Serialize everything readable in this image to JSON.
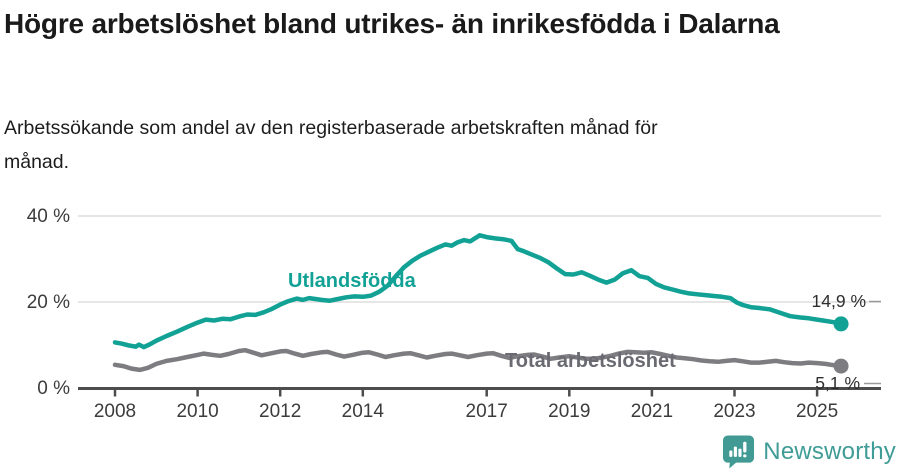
{
  "header": {
    "title": "Högre arbetslöshet bland utrikes- än inrikesfödda i Dalarna",
    "subtitle": "Arbetssökande som andel av den registerbaserade arbetskraften månad för månad."
  },
  "chart_data": {
    "type": "line",
    "title": "Högre arbetslöshet bland utrikes- än inrikesfödda i Dalarna",
    "subtitle": "Arbetssökande som andel av den registerbaserade arbetskraften månad för månad.",
    "unit": "%",
    "grid": "horizontal-only",
    "legend_position": "inline-labels",
    "x_axis": {
      "min": 2008,
      "max": 2025.7,
      "ticks": [
        2008,
        2010,
        2012,
        2014,
        2017,
        2019,
        2021,
        2023,
        2025
      ]
    },
    "y_axis": {
      "min": 0,
      "max": 40,
      "ticks": [
        {
          "value": 0,
          "label": "0 %"
        },
        {
          "value": 20,
          "label": "20 %"
        },
        {
          "value": 40,
          "label": "40 %"
        }
      ]
    },
    "series": [
      {
        "name": "Utlandsfödda",
        "color": "#12a195",
        "end_value": 14.9,
        "end_label": "14,9 %",
        "points": [
          [
            2008.0,
            10.6
          ],
          [
            2008.17,
            10.3
          ],
          [
            2008.33,
            9.9
          ],
          [
            2008.5,
            9.6
          ],
          [
            2008.58,
            10.1
          ],
          [
            2008.7,
            9.5
          ],
          [
            2008.83,
            10.1
          ],
          [
            2009.0,
            11.0
          ],
          [
            2009.25,
            12.1
          ],
          [
            2009.5,
            13.1
          ],
          [
            2009.75,
            14.2
          ],
          [
            2010.0,
            15.2
          ],
          [
            2010.2,
            15.9
          ],
          [
            2010.4,
            15.7
          ],
          [
            2010.6,
            16.1
          ],
          [
            2010.8,
            16.0
          ],
          [
            2011.0,
            16.6
          ],
          [
            2011.2,
            17.1
          ],
          [
            2011.4,
            17.0
          ],
          [
            2011.6,
            17.6
          ],
          [
            2011.8,
            18.4
          ],
          [
            2012.0,
            19.4
          ],
          [
            2012.2,
            20.2
          ],
          [
            2012.4,
            20.8
          ],
          [
            2012.55,
            20.5
          ],
          [
            2012.7,
            20.9
          ],
          [
            2012.85,
            20.7
          ],
          [
            2013.0,
            20.5
          ],
          [
            2013.2,
            20.3
          ],
          [
            2013.4,
            20.7
          ],
          [
            2013.6,
            21.1
          ],
          [
            2013.8,
            21.3
          ],
          [
            2014.0,
            21.2
          ],
          [
            2014.2,
            21.5
          ],
          [
            2014.4,
            22.4
          ],
          [
            2014.6,
            23.8
          ],
          [
            2014.8,
            26.0
          ],
          [
            2015.0,
            28.1
          ],
          [
            2015.2,
            29.6
          ],
          [
            2015.4,
            30.8
          ],
          [
            2015.6,
            31.7
          ],
          [
            2015.8,
            32.6
          ],
          [
            2016.0,
            33.4
          ],
          [
            2016.15,
            33.1
          ],
          [
            2016.3,
            33.9
          ],
          [
            2016.45,
            34.4
          ],
          [
            2016.6,
            34.1
          ],
          [
            2016.83,
            35.5
          ],
          [
            2017.0,
            35.1
          ],
          [
            2017.2,
            34.8
          ],
          [
            2017.4,
            34.6
          ],
          [
            2017.6,
            34.2
          ],
          [
            2017.75,
            32.3
          ],
          [
            2017.9,
            31.8
          ],
          [
            2018.1,
            31.0
          ],
          [
            2018.3,
            30.2
          ],
          [
            2018.5,
            29.2
          ],
          [
            2018.7,
            27.8
          ],
          [
            2018.9,
            26.5
          ],
          [
            2019.1,
            26.4
          ],
          [
            2019.3,
            26.9
          ],
          [
            2019.5,
            26.1
          ],
          [
            2019.7,
            25.2
          ],
          [
            2019.9,
            24.5
          ],
          [
            2020.1,
            25.2
          ],
          [
            2020.3,
            26.7
          ],
          [
            2020.5,
            27.4
          ],
          [
            2020.7,
            26.0
          ],
          [
            2020.9,
            25.6
          ],
          [
            2021.1,
            24.2
          ],
          [
            2021.3,
            23.4
          ],
          [
            2021.5,
            22.9
          ],
          [
            2021.7,
            22.4
          ],
          [
            2021.9,
            22.0
          ],
          [
            2022.1,
            21.8
          ],
          [
            2022.3,
            21.6
          ],
          [
            2022.5,
            21.4
          ],
          [
            2022.7,
            21.2
          ],
          [
            2022.9,
            20.9
          ],
          [
            2023.05,
            19.9
          ],
          [
            2023.2,
            19.3
          ],
          [
            2023.4,
            18.8
          ],
          [
            2023.6,
            18.6
          ],
          [
            2023.85,
            18.3
          ],
          [
            2024.1,
            17.5
          ],
          [
            2024.35,
            16.7
          ],
          [
            2024.6,
            16.4
          ],
          [
            2024.8,
            16.2
          ],
          [
            2025.0,
            15.9
          ],
          [
            2025.2,
            15.6
          ],
          [
            2025.4,
            15.3
          ],
          [
            2025.58,
            14.9
          ]
        ]
      },
      {
        "name": "Total arbetslöshet",
        "color": "#7d7d81",
        "end_value": 5.1,
        "end_label": "5,1 %",
        "points": [
          [
            2008.0,
            5.4
          ],
          [
            2008.2,
            5.1
          ],
          [
            2008.4,
            4.5
          ],
          [
            2008.6,
            4.2
          ],
          [
            2008.8,
            4.7
          ],
          [
            2009.0,
            5.6
          ],
          [
            2009.25,
            6.3
          ],
          [
            2009.5,
            6.7
          ],
          [
            2009.75,
            7.2
          ],
          [
            2010.0,
            7.7
          ],
          [
            2010.15,
            8.0
          ],
          [
            2010.35,
            7.7
          ],
          [
            2010.55,
            7.5
          ],
          [
            2010.75,
            7.9
          ],
          [
            2011.0,
            8.6
          ],
          [
            2011.15,
            8.8
          ],
          [
            2011.35,
            8.2
          ],
          [
            2011.55,
            7.6
          ],
          [
            2011.75,
            8.0
          ],
          [
            2012.0,
            8.5
          ],
          [
            2012.15,
            8.6
          ],
          [
            2012.35,
            8.0
          ],
          [
            2012.55,
            7.5
          ],
          [
            2012.75,
            7.9
          ],
          [
            2013.0,
            8.3
          ],
          [
            2013.15,
            8.4
          ],
          [
            2013.35,
            7.8
          ],
          [
            2013.55,
            7.3
          ],
          [
            2013.75,
            7.7
          ],
          [
            2014.0,
            8.2
          ],
          [
            2014.15,
            8.3
          ],
          [
            2014.35,
            7.8
          ],
          [
            2014.55,
            7.2
          ],
          [
            2014.75,
            7.6
          ],
          [
            2015.0,
            8.0
          ],
          [
            2015.15,
            8.1
          ],
          [
            2015.35,
            7.6
          ],
          [
            2015.55,
            7.1
          ],
          [
            2015.75,
            7.5
          ],
          [
            2016.0,
            7.9
          ],
          [
            2016.15,
            8.0
          ],
          [
            2016.35,
            7.6
          ],
          [
            2016.55,
            7.2
          ],
          [
            2016.75,
            7.6
          ],
          [
            2017.0,
            8.0
          ],
          [
            2017.15,
            8.1
          ],
          [
            2017.35,
            7.5
          ],
          [
            2017.55,
            7.0
          ],
          [
            2017.75,
            7.4
          ],
          [
            2018.0,
            7.7
          ],
          [
            2018.15,
            7.8
          ],
          [
            2018.35,
            7.3
          ],
          [
            2018.55,
            6.8
          ],
          [
            2018.75,
            7.1
          ],
          [
            2019.0,
            7.4
          ],
          [
            2019.2,
            7.1
          ],
          [
            2019.4,
            6.8
          ],
          [
            2019.6,
            6.8
          ],
          [
            2019.8,
            7.1
          ],
          [
            2020.0,
            7.5
          ],
          [
            2020.2,
            8.0
          ],
          [
            2020.4,
            8.4
          ],
          [
            2020.6,
            8.3
          ],
          [
            2020.8,
            8.2
          ],
          [
            2021.0,
            8.3
          ],
          [
            2021.2,
            7.9
          ],
          [
            2021.4,
            7.5
          ],
          [
            2021.6,
            7.1
          ],
          [
            2021.8,
            6.9
          ],
          [
            2022.0,
            6.7
          ],
          [
            2022.2,
            6.4
          ],
          [
            2022.4,
            6.2
          ],
          [
            2022.6,
            6.1
          ],
          [
            2022.8,
            6.3
          ],
          [
            2023.0,
            6.5
          ],
          [
            2023.2,
            6.2
          ],
          [
            2023.4,
            5.9
          ],
          [
            2023.6,
            5.9
          ],
          [
            2023.8,
            6.1
          ],
          [
            2024.0,
            6.3
          ],
          [
            2024.2,
            6.0
          ],
          [
            2024.4,
            5.8
          ],
          [
            2024.6,
            5.7
          ],
          [
            2024.8,
            5.9
          ],
          [
            2025.0,
            5.8
          ],
          [
            2025.2,
            5.6
          ],
          [
            2025.4,
            5.3
          ],
          [
            2025.58,
            5.1
          ]
        ]
      }
    ]
  },
  "branding": {
    "name": "Newsworthy"
  }
}
